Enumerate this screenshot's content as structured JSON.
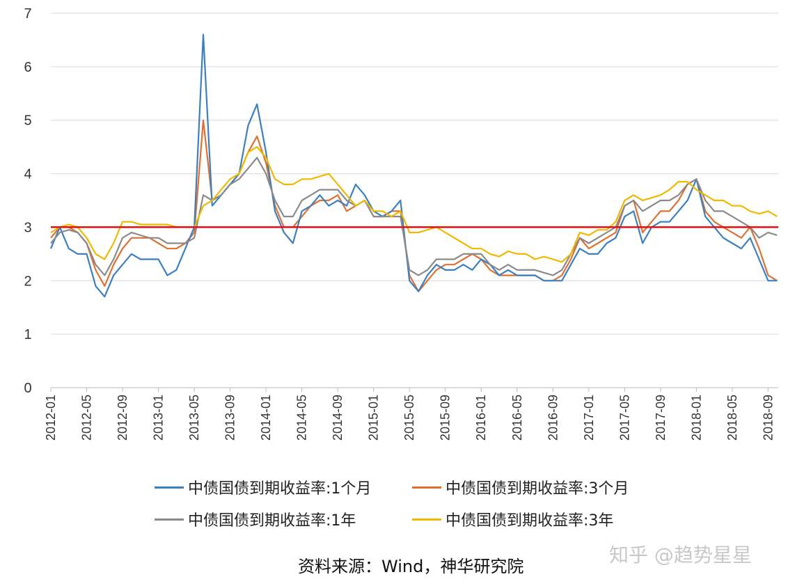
{
  "chart_data": {
    "type": "line",
    "title": "",
    "xlabel": "",
    "ylabel": "",
    "ylim": [
      0,
      7
    ],
    "yticks": [
      "0",
      "1",
      "2",
      "3",
      "4",
      "5",
      "6",
      "7"
    ],
    "xticks": [
      "2012-01",
      "2012-05",
      "2012-09",
      "2013-01",
      "2013-05",
      "2013-09",
      "2014-01",
      "2014-05",
      "2014-09",
      "2015-01",
      "2015-05",
      "2015-09",
      "2016-01",
      "2016-05",
      "2016-09",
      "2017-01",
      "2017-05",
      "2017-09",
      "2018-01",
      "2018-05",
      "2018-09"
    ],
    "x_start": "2012-01",
    "x_end": "2018-10",
    "grid": "horizontal",
    "legend_position": "bottom",
    "reference_line": {
      "y": 3,
      "color": "#e01010"
    },
    "series": [
      {
        "name": "中债国债到期收益率:1个月",
        "color": "#3a7fc1",
        "values": [
          2.6,
          3.0,
          2.6,
          2.5,
          2.5,
          1.9,
          1.7,
          2.1,
          2.3,
          2.5,
          2.4,
          2.4,
          2.4,
          2.1,
          2.2,
          2.6,
          3.0,
          6.6,
          3.4,
          3.6,
          3.8,
          4.0,
          4.9,
          5.3,
          4.4,
          3.3,
          2.9,
          2.7,
          3.3,
          3.4,
          3.6,
          3.4,
          3.5,
          3.4,
          3.8,
          3.6,
          3.3,
          3.2,
          3.3,
          3.5,
          2.0,
          1.8,
          2.1,
          2.3,
          2.2,
          2.2,
          2.3,
          2.2,
          2.4,
          2.3,
          2.1,
          2.2,
          2.1,
          2.1,
          2.1,
          2.0,
          2.0,
          2.0,
          2.3,
          2.6,
          2.5,
          2.5,
          2.7,
          2.8,
          3.2,
          3.3,
          2.7,
          3.0,
          3.1,
          3.1,
          3.3,
          3.5,
          3.9,
          3.2,
          3.0,
          2.8,
          2.7,
          2.6,
          2.8,
          2.4,
          2.0,
          2.0
        ]
      },
      {
        "name": "中债国债到期收益率:3个月",
        "color": "#e07030",
        "values": [
          2.8,
          3.0,
          3.0,
          2.9,
          2.7,
          2.2,
          1.9,
          2.3,
          2.6,
          2.8,
          2.8,
          2.8,
          2.7,
          2.6,
          2.6,
          2.7,
          2.9,
          5.0,
          3.5,
          3.6,
          3.8,
          4.0,
          4.4,
          4.7,
          4.2,
          3.4,
          3.0,
          3.0,
          3.2,
          3.4,
          3.5,
          3.5,
          3.6,
          3.3,
          3.4,
          3.5,
          3.2,
          3.2,
          3.3,
          3.3,
          2.1,
          1.8,
          2.0,
          2.2,
          2.3,
          2.3,
          2.4,
          2.5,
          2.4,
          2.2,
          2.1,
          2.1,
          2.1,
          2.1,
          2.1,
          2.0,
          2.0,
          2.1,
          2.4,
          2.8,
          2.6,
          2.7,
          2.8,
          2.9,
          3.4,
          3.5,
          2.9,
          3.1,
          3.3,
          3.3,
          3.5,
          3.8,
          3.9,
          3.3,
          3.1,
          3.0,
          2.9,
          2.8,
          3.0,
          2.6,
          2.1,
          2.0
        ]
      },
      {
        "name": "中债国债到期收益率:1年",
        "color": "#8a8a8a",
        "values": [
          2.7,
          2.9,
          2.95,
          2.9,
          2.7,
          2.3,
          2.1,
          2.4,
          2.8,
          2.9,
          2.85,
          2.8,
          2.8,
          2.7,
          2.7,
          2.7,
          2.8,
          3.6,
          3.5,
          3.6,
          3.8,
          3.9,
          4.1,
          4.3,
          4.0,
          3.5,
          3.2,
          3.2,
          3.5,
          3.6,
          3.7,
          3.7,
          3.7,
          3.5,
          3.4,
          3.5,
          3.2,
          3.2,
          3.2,
          3.2,
          2.2,
          2.1,
          2.2,
          2.4,
          2.4,
          2.4,
          2.5,
          2.5,
          2.5,
          2.3,
          2.2,
          2.3,
          2.2,
          2.2,
          2.2,
          2.15,
          2.1,
          2.2,
          2.5,
          2.8,
          2.7,
          2.8,
          2.9,
          3.0,
          3.4,
          3.5,
          3.3,
          3.4,
          3.5,
          3.5,
          3.6,
          3.8,
          3.9,
          3.5,
          3.3,
          3.3,
          3.2,
          3.1,
          3.0,
          2.8,
          2.9,
          2.85
        ]
      },
      {
        "name": "中债国债到期收益率:3年",
        "color": "#f0b800",
        "values": [
          2.9,
          3.0,
          3.05,
          3.0,
          2.8,
          2.5,
          2.4,
          2.7,
          3.1,
          3.1,
          3.05,
          3.05,
          3.05,
          3.05,
          3.0,
          3.0,
          3.0,
          3.4,
          3.5,
          3.7,
          3.9,
          4.0,
          4.4,
          4.5,
          4.3,
          3.9,
          3.8,
          3.8,
          3.9,
          3.9,
          3.95,
          4.0,
          3.8,
          3.6,
          3.4,
          3.5,
          3.3,
          3.3,
          3.2,
          3.3,
          2.9,
          2.9,
          2.95,
          3.0,
          2.9,
          2.8,
          2.7,
          2.6,
          2.6,
          2.5,
          2.45,
          2.55,
          2.5,
          2.5,
          2.4,
          2.45,
          2.4,
          2.35,
          2.5,
          2.9,
          2.85,
          2.95,
          2.95,
          3.1,
          3.5,
          3.6,
          3.5,
          3.55,
          3.6,
          3.7,
          3.85,
          3.85,
          3.7,
          3.6,
          3.5,
          3.5,
          3.4,
          3.4,
          3.3,
          3.25,
          3.3,
          3.2
        ]
      }
    ]
  },
  "source": "资料来源：Wind，神华研究院",
  "watermark": "知乎 @趋势星星"
}
